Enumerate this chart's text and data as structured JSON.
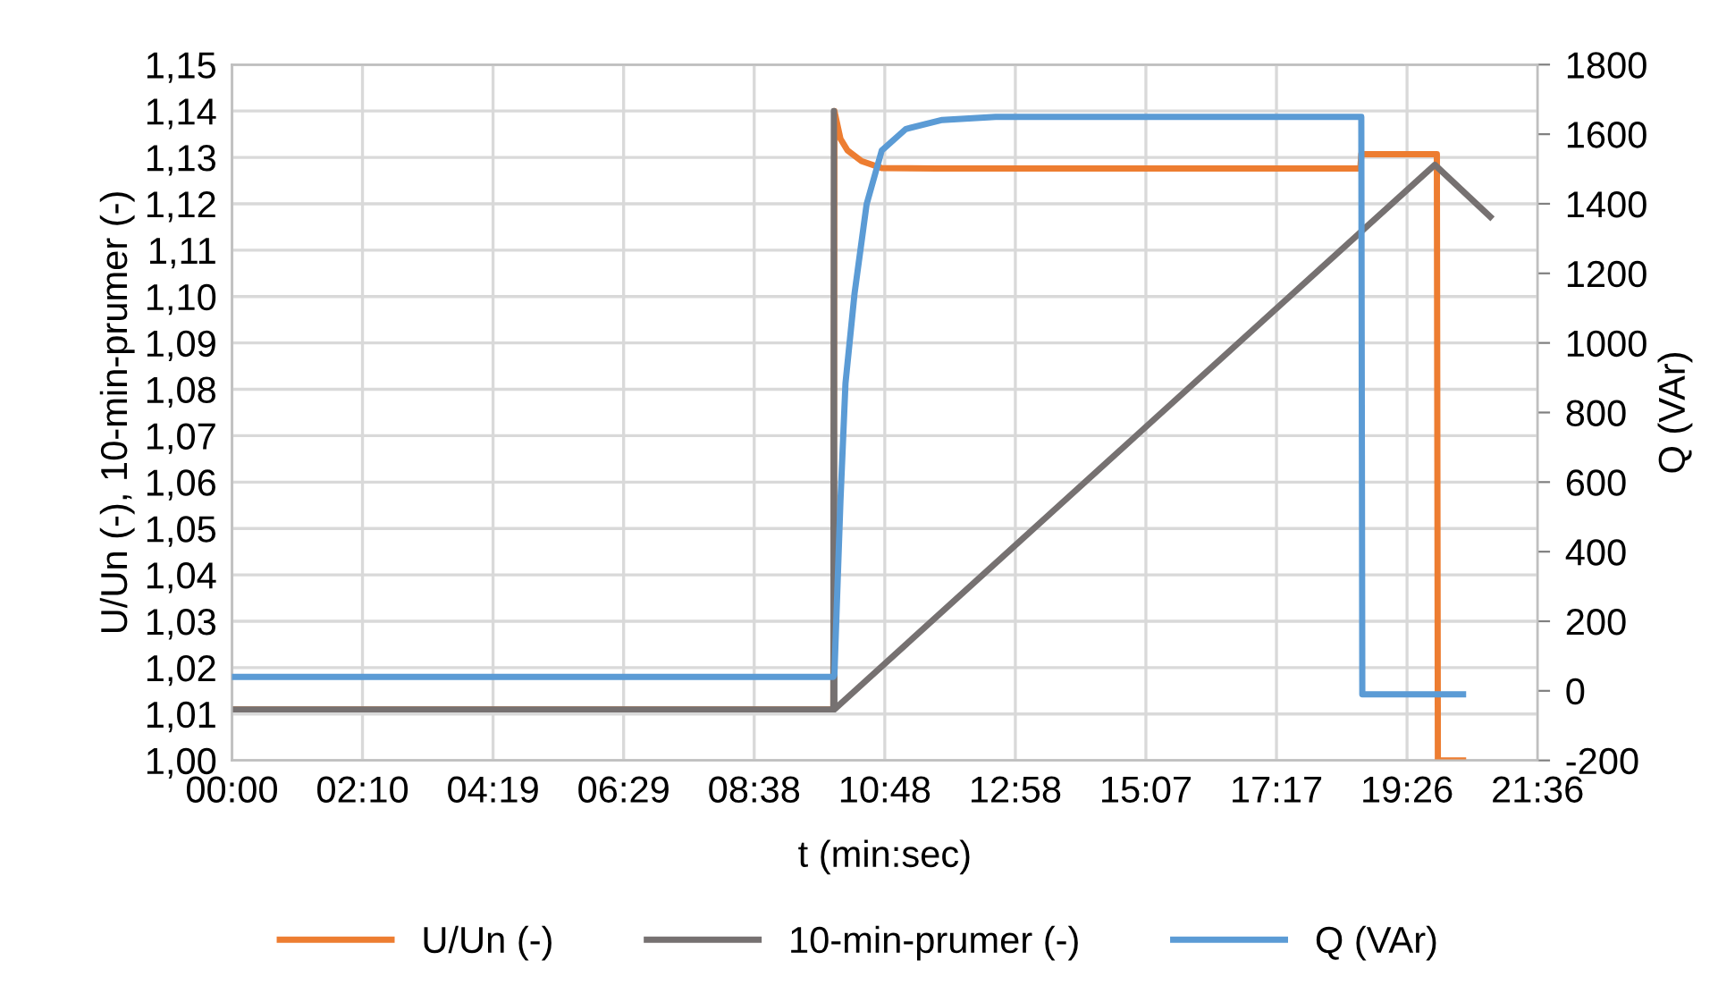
{
  "chart_data": {
    "type": "line",
    "xlabel": "t (min:sec)",
    "ylabel": "U/Un (-), 10-min-prumer (-)",
    "y2label": "Q (VAr)",
    "xlim": [
      0,
      1296
    ],
    "xticks": [
      {
        "value": 0,
        "label": "00:00"
      },
      {
        "value": 129.6,
        "label": "02:10"
      },
      {
        "value": 259.2,
        "label": "04:19"
      },
      {
        "value": 388.8,
        "label": "06:29"
      },
      {
        "value": 518.4,
        "label": "08:38"
      },
      {
        "value": 648,
        "label": "10:48"
      },
      {
        "value": 777.6,
        "label": "12:58"
      },
      {
        "value": 907.2,
        "label": "15:07"
      },
      {
        "value": 1036.8,
        "label": "17:17"
      },
      {
        "value": 1166.4,
        "label": "19:26"
      },
      {
        "value": 1296,
        "label": "21:36"
      }
    ],
    "ylim": [
      1.0,
      1.15
    ],
    "yticks": [
      {
        "value": 1.0,
        "label": "1,00"
      },
      {
        "value": 1.01,
        "label": "1,01"
      },
      {
        "value": 1.02,
        "label": "1,02"
      },
      {
        "value": 1.03,
        "label": "1,03"
      },
      {
        "value": 1.04,
        "label": "1,04"
      },
      {
        "value": 1.05,
        "label": "1,05"
      },
      {
        "value": 1.06,
        "label": "1,06"
      },
      {
        "value": 1.07,
        "label": "1,07"
      },
      {
        "value": 1.08,
        "label": "1,08"
      },
      {
        "value": 1.09,
        "label": "1,09"
      },
      {
        "value": 1.1,
        "label": "1,10"
      },
      {
        "value": 1.11,
        "label": "1,11"
      },
      {
        "value": 1.12,
        "label": "1,12"
      },
      {
        "value": 1.13,
        "label": "1,13"
      },
      {
        "value": 1.14,
        "label": "1,14"
      },
      {
        "value": 1.15,
        "label": "1,15"
      }
    ],
    "y2lim": [
      -200,
      1800
    ],
    "y2ticks": [
      -200,
      0,
      200,
      400,
      600,
      800,
      1000,
      1200,
      1400,
      1600,
      1800
    ],
    "grid": true,
    "legend": "bottom",
    "marker": "none",
    "line_style": "solid",
    "series": [
      {
        "name": "U/Un (-)",
        "color": "#ed7d31",
        "x": [
          0,
          597,
          598,
          604,
          611,
          625,
          645,
          700,
          1120,
          1121,
          1196,
          1197,
          1222
        ],
        "values": [
          1.011,
          1.011,
          1.14,
          1.134,
          1.1315,
          1.1292,
          1.1277,
          1.1276,
          1.1276,
          1.1307,
          1.1307,
          1.0,
          1.0
        ]
      },
      {
        "name": "10-min-prumer (-)",
        "color": "#767171",
        "x": [
          0,
          597,
          597.5,
          598,
          1194,
          1249
        ],
        "values": [
          1.011,
          1.011,
          1.14,
          1.011,
          1.1284,
          1.1172
        ]
      },
      {
        "name": "Q (VAr)",
        "color": "#5b9bd5",
        "axis": "y2",
        "x": [
          0,
          597,
          598,
          604,
          609,
          618,
          630,
          645,
          669,
          705,
          758,
          1121,
          1122,
          1222
        ],
        "values": [
          40,
          40,
          47,
          545,
          884,
          1142,
          1399,
          1553,
          1615,
          1641,
          1650,
          1650,
          -10,
          -10
        ]
      }
    ]
  }
}
